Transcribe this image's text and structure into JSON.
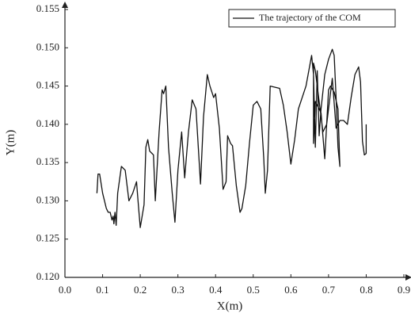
{
  "chart_data": {
    "type": "line",
    "x_label": "X(m)",
    "y_label": "Y(m)",
    "x": [
      0.085,
      0.088,
      0.092,
      0.1,
      0.11,
      0.115,
      0.12,
      0.125,
      0.128,
      0.13,
      0.133,
      0.136,
      0.14,
      0.15,
      0.16,
      0.17,
      0.18,
      0.19,
      0.195,
      0.2,
      0.21,
      0.215,
      0.22,
      0.225,
      0.235,
      0.24,
      0.25,
      0.258,
      0.262,
      0.268,
      0.275,
      0.285,
      0.292,
      0.3,
      0.31,
      0.318,
      0.328,
      0.338,
      0.348,
      0.36,
      0.368,
      0.378,
      0.385,
      0.395,
      0.4,
      0.41,
      0.42,
      0.428,
      0.432,
      0.44,
      0.445,
      0.455,
      0.465,
      0.47,
      0.48,
      0.49,
      0.5,
      0.51,
      0.52,
      0.528,
      0.532,
      0.538,
      0.545,
      0.57,
      0.58,
      0.59,
      0.6,
      0.61,
      0.62,
      0.64,
      0.655,
      0.66,
      0.665,
      0.67,
      0.675,
      0.68,
      0.69,
      0.7,
      0.71,
      0.715,
      0.72,
      0.725,
      0.73,
      0.725,
      0.715,
      0.705,
      0.7,
      0.69,
      0.68,
      0.67,
      0.665,
      0.66,
      0.66,
      0.665,
      0.675,
      0.685,
      0.695,
      0.71,
      0.72,
      0.73,
      0.74,
      0.75,
      0.76,
      0.77,
      0.78,
      0.785,
      0.79,
      0.795,
      0.8,
      0.8
    ],
    "series": [
      {
        "name": "The trajectory of the COM",
        "color": "#111111",
        "values": [
          0.131,
          0.1335,
          0.1335,
          0.131,
          0.129,
          0.1285,
          0.1285,
          0.1275,
          0.128,
          0.127,
          0.1285,
          0.1268,
          0.131,
          0.1345,
          0.134,
          0.13,
          0.131,
          0.1325,
          0.1295,
          0.1265,
          0.1295,
          0.137,
          0.138,
          0.1365,
          0.136,
          0.13,
          0.139,
          0.1445,
          0.144,
          0.145,
          0.137,
          0.131,
          0.1272,
          0.134,
          0.139,
          0.133,
          0.139,
          0.1432,
          0.142,
          0.1322,
          0.141,
          0.1465,
          0.145,
          0.1435,
          0.144,
          0.1395,
          0.1315,
          0.1325,
          0.1385,
          0.1375,
          0.1372,
          0.132,
          0.1285,
          0.129,
          0.132,
          0.1375,
          0.1425,
          0.143,
          0.142,
          0.1355,
          0.131,
          0.134,
          0.145,
          0.1447,
          0.1425,
          0.139,
          0.1348,
          0.138,
          0.142,
          0.145,
          0.149,
          0.1465,
          0.137,
          0.147,
          0.1385,
          0.142,
          0.1465,
          0.1485,
          0.1498,
          0.149,
          0.1435,
          0.137,
          0.1345,
          0.142,
          0.1442,
          0.145,
          0.1445,
          0.1355,
          0.1415,
          0.1425,
          0.143,
          0.1375,
          0.148,
          0.147,
          0.143,
          0.139,
          0.14,
          0.146,
          0.1395,
          0.1405,
          0.1405,
          0.14,
          0.1435,
          0.1465,
          0.1475,
          0.1455,
          0.1378,
          0.136,
          0.1362,
          0.14
        ]
      }
    ],
    "xlim": [
      0,
      0.9
    ],
    "xticks": [
      {
        "value": 0,
        "label": "0.0"
      },
      0.1,
      0.2,
      0.3,
      0.4,
      0.5,
      0.6,
      0.7,
      0.8,
      0.9
    ],
    "ylim": [
      0.12,
      0.155
    ],
    "yticks": [
      {
        "value": 0.12,
        "label": "0.120"
      },
      0.125,
      {
        "value": 0.13,
        "label": "0.130"
      },
      0.135,
      {
        "value": 0.14,
        "label": "0.140"
      },
      0.145,
      {
        "value": 0.15,
        "label": "0.150"
      },
      0.155
    ],
    "grid": false,
    "legend": "upper right"
  }
}
